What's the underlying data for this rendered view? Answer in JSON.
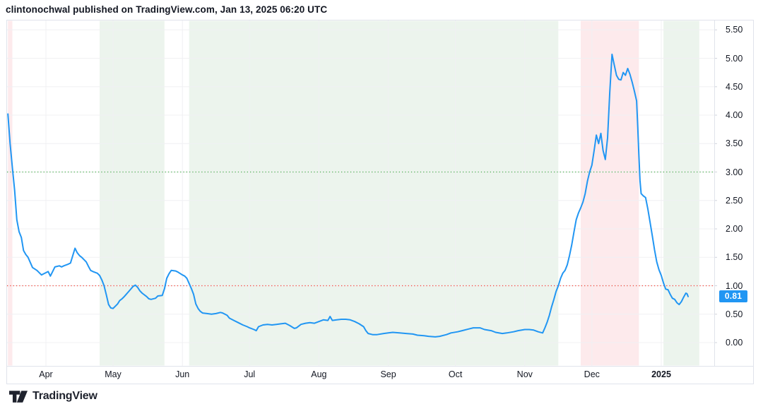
{
  "header": {
    "attribution": "clintonochwal published on TradingView.com, Jan 13, 2025 06:20 UTC"
  },
  "footer": {
    "brand": "TradingView"
  },
  "colors": {
    "line": "#2196f3",
    "badge": "#2196f3",
    "grid": "#f0f0f3",
    "border": "#e0e3eb",
    "axis_text": "#131722",
    "level_green": "#4caf50",
    "level_red": "#f44336",
    "band_green": "#ecf4ed",
    "band_red": "#fdeaec"
  },
  "chart_data": {
    "type": "line",
    "title": "",
    "legend": "none",
    "grid": "on",
    "line_color": "#2196f3",
    "last_price": {
      "value": 0.81,
      "label": "0.81",
      "badge_color": "#2196f3"
    },
    "levels": [
      {
        "value": 3.0,
        "color": "#4caf50",
        "style": "dotted"
      },
      {
        "value": 1.0,
        "color": "#f44336",
        "style": "dotted"
      }
    ],
    "band_colors": {
      "green": "#ecf4ed",
      "red": "#fdeaec"
    },
    "bands": [
      {
        "from": "2024-03-15",
        "to": "2024-03-17",
        "color": "red"
      },
      {
        "from": "2024-04-25",
        "to": "2024-05-24",
        "color": "green"
      },
      {
        "from": "2024-06-04",
        "to": "2024-11-16",
        "color": "green"
      },
      {
        "from": "2024-11-26",
        "to": "2024-12-22",
        "color": "red"
      },
      {
        "from": "2025-01-02",
        "to": "2025-01-18",
        "color": "green"
      }
    ],
    "x_axis": {
      "ticks": [
        {
          "date": "2024-04-01",
          "label": "Apr"
        },
        {
          "date": "2024-05-01",
          "label": "May"
        },
        {
          "date": "2024-06-01",
          "label": "Jun"
        },
        {
          "date": "2024-07-01",
          "label": "Jul"
        },
        {
          "date": "2024-08-01",
          "label": "Aug"
        },
        {
          "date": "2024-09-01",
          "label": "Sep"
        },
        {
          "date": "2024-10-01",
          "label": "Oct"
        },
        {
          "date": "2024-11-01",
          "label": "Nov"
        },
        {
          "date": "2024-12-01",
          "label": "Dec"
        },
        {
          "date": "2025-01-01",
          "label": "2025",
          "bold": true
        }
      ]
    },
    "y_axis": {
      "visible_range": [
        0.0,
        5.5
      ],
      "ticks": [
        {
          "v": 5.5,
          "label": "5.50"
        },
        {
          "v": 5.0,
          "label": "5.00"
        },
        {
          "v": 4.5,
          "label": "4.50"
        },
        {
          "v": 4.0,
          "label": "4.00"
        },
        {
          "v": 3.5,
          "label": "3.50"
        },
        {
          "v": 3.0,
          "label": "3.00"
        },
        {
          "v": 2.5,
          "label": "2.50"
        },
        {
          "v": 2.0,
          "label": "2.00"
        },
        {
          "v": 1.5,
          "label": "1.50"
        },
        {
          "v": 1.0,
          "label": "1.00"
        },
        {
          "v": 0.5,
          "label": "0.50"
        },
        {
          "v": 0.0,
          "label": "0.00"
        }
      ]
    },
    "series": [
      {
        "name": "price",
        "points": [
          [
            "2024-03-15",
            4.02
          ],
          [
            "2024-03-16",
            3.5
          ],
          [
            "2024-03-17",
            3.08
          ],
          [
            "2024-03-18",
            2.68
          ],
          [
            "2024-03-19",
            2.16
          ],
          [
            "2024-03-20",
            1.95
          ],
          [
            "2024-03-21",
            1.85
          ],
          [
            "2024-03-22",
            1.62
          ],
          [
            "2024-03-23",
            1.55
          ],
          [
            "2024-03-24",
            1.5
          ],
          [
            "2024-03-26",
            1.32
          ],
          [
            "2024-03-28",
            1.27
          ],
          [
            "2024-03-30",
            1.19
          ],
          [
            "2024-03-31",
            1.21
          ],
          [
            "2024-04-02",
            1.25
          ],
          [
            "2024-04-03",
            1.17
          ],
          [
            "2024-04-04",
            1.25
          ],
          [
            "2024-04-05",
            1.33
          ],
          [
            "2024-04-07",
            1.35
          ],
          [
            "2024-04-08",
            1.33
          ],
          [
            "2024-04-09",
            1.35
          ],
          [
            "2024-04-11",
            1.38
          ],
          [
            "2024-04-12",
            1.4
          ],
          [
            "2024-04-13",
            1.53
          ],
          [
            "2024-04-14",
            1.66
          ],
          [
            "2024-04-15",
            1.58
          ],
          [
            "2024-04-16",
            1.53
          ],
          [
            "2024-04-17",
            1.5
          ],
          [
            "2024-04-19",
            1.42
          ],
          [
            "2024-04-20",
            1.34
          ],
          [
            "2024-04-21",
            1.27
          ],
          [
            "2024-04-22",
            1.25
          ],
          [
            "2024-04-24",
            1.22
          ],
          [
            "2024-04-25",
            1.18
          ],
          [
            "2024-04-26",
            1.1
          ],
          [
            "2024-04-27",
            1.0
          ],
          [
            "2024-04-28",
            0.84
          ],
          [
            "2024-04-29",
            0.67
          ],
          [
            "2024-04-30",
            0.61
          ],
          [
            "2024-05-01",
            0.6
          ],
          [
            "2024-05-03",
            0.68
          ],
          [
            "2024-05-04",
            0.74
          ],
          [
            "2024-05-05",
            0.77
          ],
          [
            "2024-05-06",
            0.81
          ],
          [
            "2024-05-08",
            0.9
          ],
          [
            "2024-05-10",
            0.99
          ],
          [
            "2024-05-11",
            1.01
          ],
          [
            "2024-05-12",
            0.97
          ],
          [
            "2024-05-13",
            0.91
          ],
          [
            "2024-05-14",
            0.87
          ],
          [
            "2024-05-16",
            0.81
          ],
          [
            "2024-05-17",
            0.77
          ],
          [
            "2024-05-18",
            0.76
          ],
          [
            "2024-05-20",
            0.78
          ],
          [
            "2024-05-21",
            0.82
          ],
          [
            "2024-05-23",
            0.83
          ],
          [
            "2024-05-24",
            0.95
          ],
          [
            "2024-05-25",
            1.13
          ],
          [
            "2024-05-26",
            1.21
          ],
          [
            "2024-05-27",
            1.27
          ],
          [
            "2024-05-29",
            1.26
          ],
          [
            "2024-05-30",
            1.24
          ],
          [
            "2024-06-01",
            1.19
          ],
          [
            "2024-06-02",
            1.17
          ],
          [
            "2024-06-03",
            1.13
          ],
          [
            "2024-06-04",
            1.04
          ],
          [
            "2024-06-05",
            0.95
          ],
          [
            "2024-06-06",
            0.85
          ],
          [
            "2024-06-07",
            0.68
          ],
          [
            "2024-06-08",
            0.6
          ],
          [
            "2024-06-09",
            0.55
          ],
          [
            "2024-06-10",
            0.52
          ],
          [
            "2024-06-12",
            0.51
          ],
          [
            "2024-06-14",
            0.5
          ],
          [
            "2024-06-16",
            0.51
          ],
          [
            "2024-06-18",
            0.53
          ],
          [
            "2024-06-19",
            0.52
          ],
          [
            "2024-06-21",
            0.48
          ],
          [
            "2024-06-22",
            0.43
          ],
          [
            "2024-06-24",
            0.39
          ],
          [
            "2024-06-26",
            0.35
          ],
          [
            "2024-06-28",
            0.31
          ],
          [
            "2024-06-30",
            0.28
          ],
          [
            "2024-07-01",
            0.26
          ],
          [
            "2024-07-03",
            0.23
          ],
          [
            "2024-07-04",
            0.21
          ],
          [
            "2024-07-05",
            0.28
          ],
          [
            "2024-07-07",
            0.31
          ],
          [
            "2024-07-09",
            0.32
          ],
          [
            "2024-07-11",
            0.31
          ],
          [
            "2024-07-13",
            0.32
          ],
          [
            "2024-07-15",
            0.33
          ],
          [
            "2024-07-17",
            0.34
          ],
          [
            "2024-07-19",
            0.3
          ],
          [
            "2024-07-21",
            0.25
          ],
          [
            "2024-07-22",
            0.26
          ],
          [
            "2024-07-24",
            0.32
          ],
          [
            "2024-07-26",
            0.34
          ],
          [
            "2024-07-28",
            0.35
          ],
          [
            "2024-07-30",
            0.34
          ],
          [
            "2024-08-01",
            0.37
          ],
          [
            "2024-08-03",
            0.4
          ],
          [
            "2024-08-05",
            0.39
          ],
          [
            "2024-08-06",
            0.46
          ],
          [
            "2024-08-07",
            0.39
          ],
          [
            "2024-08-09",
            0.4
          ],
          [
            "2024-08-11",
            0.41
          ],
          [
            "2024-08-13",
            0.41
          ],
          [
            "2024-08-15",
            0.4
          ],
          [
            "2024-08-17",
            0.37
          ],
          [
            "2024-08-19",
            0.33
          ],
          [
            "2024-08-21",
            0.28
          ],
          [
            "2024-08-22",
            0.21
          ],
          [
            "2024-08-23",
            0.16
          ],
          [
            "2024-08-25",
            0.14
          ],
          [
            "2024-08-27",
            0.14
          ],
          [
            "2024-08-30",
            0.16
          ],
          [
            "2024-09-01",
            0.17
          ],
          [
            "2024-09-03",
            0.18
          ],
          [
            "2024-09-06",
            0.17
          ],
          [
            "2024-09-09",
            0.16
          ],
          [
            "2024-09-12",
            0.15
          ],
          [
            "2024-09-14",
            0.13
          ],
          [
            "2024-09-17",
            0.12
          ],
          [
            "2024-09-19",
            0.11
          ],
          [
            "2024-09-22",
            0.1
          ],
          [
            "2024-09-24",
            0.11
          ],
          [
            "2024-09-27",
            0.14
          ],
          [
            "2024-09-29",
            0.17
          ],
          [
            "2024-10-02",
            0.19
          ],
          [
            "2024-10-04",
            0.21
          ],
          [
            "2024-10-07",
            0.24
          ],
          [
            "2024-10-09",
            0.26
          ],
          [
            "2024-10-12",
            0.26
          ],
          [
            "2024-10-14",
            0.23
          ],
          [
            "2024-10-17",
            0.21
          ],
          [
            "2024-10-19",
            0.18
          ],
          [
            "2024-10-22",
            0.16
          ],
          [
            "2024-10-24",
            0.17
          ],
          [
            "2024-10-27",
            0.19
          ],
          [
            "2024-10-29",
            0.21
          ],
          [
            "2024-11-01",
            0.23
          ],
          [
            "2024-11-03",
            0.23
          ],
          [
            "2024-11-05",
            0.22
          ],
          [
            "2024-11-07",
            0.19
          ],
          [
            "2024-11-09",
            0.17
          ],
          [
            "2024-11-10",
            0.26
          ],
          [
            "2024-11-11",
            0.36
          ],
          [
            "2024-11-12",
            0.48
          ],
          [
            "2024-11-13",
            0.63
          ],
          [
            "2024-11-14",
            0.76
          ],
          [
            "2024-11-15",
            0.9
          ],
          [
            "2024-11-16",
            1.0
          ],
          [
            "2024-11-17",
            1.13
          ],
          [
            "2024-11-18",
            1.22
          ],
          [
            "2024-11-19",
            1.27
          ],
          [
            "2024-11-20",
            1.37
          ],
          [
            "2024-11-21",
            1.53
          ],
          [
            "2024-11-22",
            1.72
          ],
          [
            "2024-11-23",
            1.95
          ],
          [
            "2024-11-24",
            2.16
          ],
          [
            "2024-11-25",
            2.28
          ],
          [
            "2024-11-26",
            2.37
          ],
          [
            "2024-11-27",
            2.47
          ],
          [
            "2024-11-28",
            2.62
          ],
          [
            "2024-11-29",
            2.84
          ],
          [
            "2024-11-30",
            3.0
          ],
          [
            "2024-12-01",
            3.12
          ],
          [
            "2024-12-02",
            3.38
          ],
          [
            "2024-12-03",
            3.65
          ],
          [
            "2024-12-04",
            3.5
          ],
          [
            "2024-12-05",
            3.68
          ],
          [
            "2024-12-06",
            3.38
          ],
          [
            "2024-12-07",
            3.22
          ],
          [
            "2024-12-08",
            3.6
          ],
          [
            "2024-12-09",
            4.4
          ],
          [
            "2024-12-10",
            5.07
          ],
          [
            "2024-12-11",
            4.88
          ],
          [
            "2024-12-12",
            4.7
          ],
          [
            "2024-12-13",
            4.63
          ],
          [
            "2024-12-14",
            4.62
          ],
          [
            "2024-12-15",
            4.75
          ],
          [
            "2024-12-16",
            4.7
          ],
          [
            "2024-12-17",
            4.82
          ],
          [
            "2024-12-18",
            4.72
          ],
          [
            "2024-12-19",
            4.58
          ],
          [
            "2024-12-20",
            4.42
          ],
          [
            "2024-12-21",
            4.25
          ],
          [
            "2024-12-21T12:00",
            3.8
          ],
          [
            "2024-12-22",
            3.3
          ],
          [
            "2024-12-22T12:00",
            2.85
          ],
          [
            "2024-12-23",
            2.62
          ],
          [
            "2024-12-24",
            2.58
          ],
          [
            "2024-12-25",
            2.55
          ],
          [
            "2024-12-26",
            2.35
          ],
          [
            "2024-12-27",
            2.12
          ],
          [
            "2024-12-28",
            1.88
          ],
          [
            "2024-12-29",
            1.63
          ],
          [
            "2024-12-30",
            1.42
          ],
          [
            "2024-12-31",
            1.28
          ],
          [
            "2025-01-01",
            1.18
          ],
          [
            "2025-01-02",
            1.05
          ],
          [
            "2025-01-03",
            0.94
          ],
          [
            "2025-01-04",
            0.93
          ],
          [
            "2025-01-05",
            0.85
          ],
          [
            "2025-01-06",
            0.78
          ],
          [
            "2025-01-07",
            0.76
          ],
          [
            "2025-01-08",
            0.7
          ],
          [
            "2025-01-09",
            0.67
          ],
          [
            "2025-01-10",
            0.72
          ],
          [
            "2025-01-11",
            0.8
          ],
          [
            "2025-01-12",
            0.87
          ],
          [
            "2025-01-12T12:00",
            0.86
          ],
          [
            "2025-01-13",
            0.81
          ]
        ]
      }
    ]
  }
}
